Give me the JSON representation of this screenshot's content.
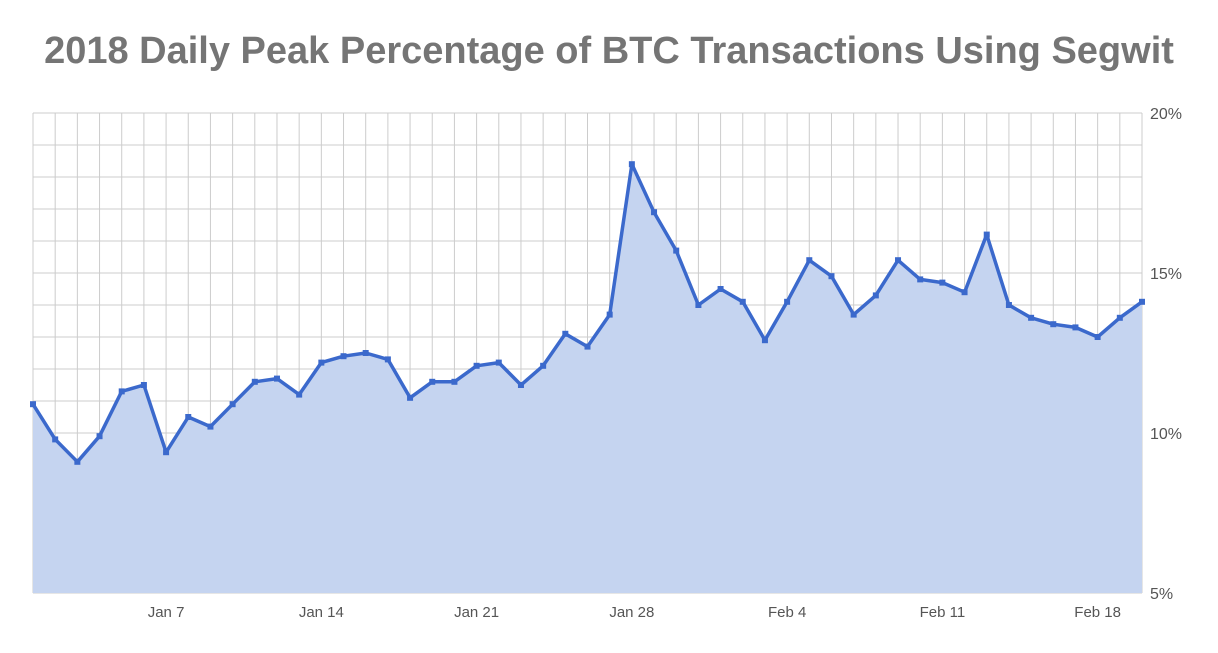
{
  "chart_data": {
    "type": "area",
    "title": "2018 Daily Peak Percentage of BTC Transactions Using Segwit",
    "xlabel": "",
    "ylabel": "",
    "ylim": [
      5,
      20
    ],
    "yticks": [
      "5%",
      "10%",
      "15%",
      "20%"
    ],
    "y_tick_values": [
      5,
      10,
      15,
      20
    ],
    "x_tick_labels": [
      "Jan 7",
      "Jan 14",
      "Jan 21",
      "Jan 28",
      "Feb 4",
      "Feb 11",
      "Feb 18"
    ],
    "x_tick_indices": [
      6,
      13,
      20,
      27,
      34,
      41,
      48
    ],
    "grid": true,
    "x": [
      "Jan 1",
      "Jan 2",
      "Jan 3",
      "Jan 4",
      "Jan 5",
      "Jan 6",
      "Jan 7",
      "Jan 8",
      "Jan 9",
      "Jan 10",
      "Jan 11",
      "Jan 12",
      "Jan 13",
      "Jan 14",
      "Jan 15",
      "Jan 16",
      "Jan 17",
      "Jan 18",
      "Jan 19",
      "Jan 20",
      "Jan 21",
      "Jan 22",
      "Jan 23",
      "Jan 24",
      "Jan 25",
      "Jan 26",
      "Jan 27",
      "Jan 28",
      "Jan 29",
      "Jan 30",
      "Jan 31",
      "Feb 1",
      "Feb 2",
      "Feb 3",
      "Feb 4",
      "Feb 5",
      "Feb 6",
      "Feb 7",
      "Feb 8",
      "Feb 9",
      "Feb 10",
      "Feb 11",
      "Feb 12",
      "Feb 13",
      "Feb 14",
      "Feb 15",
      "Feb 16",
      "Feb 17",
      "Feb 18",
      "Feb 19",
      "Feb 20"
    ],
    "values": [
      10.9,
      9.8,
      9.1,
      9.9,
      11.3,
      11.5,
      9.4,
      10.5,
      10.2,
      10.9,
      11.6,
      11.7,
      11.2,
      12.2,
      12.4,
      12.5,
      12.3,
      11.1,
      11.6,
      11.6,
      12.1,
      12.2,
      11.5,
      12.1,
      13.1,
      12.7,
      13.7,
      18.4,
      16.9,
      15.7,
      14.0,
      14.5,
      14.1,
      12.9,
      14.1,
      15.4,
      14.9,
      13.7,
      14.3,
      15.4,
      14.8,
      14.7,
      14.4,
      16.2,
      14.0,
      13.6,
      13.4,
      13.3,
      13.0,
      13.6,
      14.1
    ],
    "colors": {
      "line": "#3b69cc",
      "fill": "#c5d4f0",
      "grid": "#cccccc"
    }
  }
}
